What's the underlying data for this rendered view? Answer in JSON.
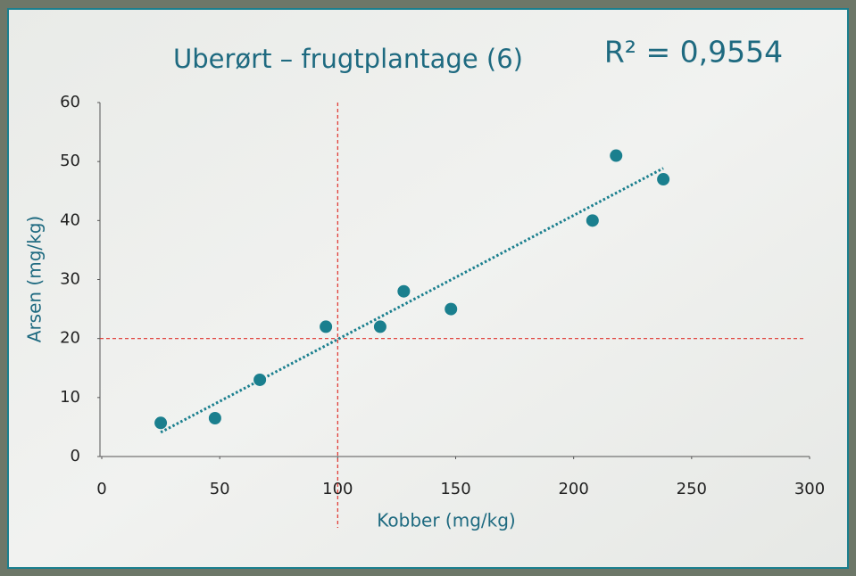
{
  "chart_data": {
    "type": "scatter",
    "title": "Uberørt – frugtplantage (6)",
    "annotation": "R² = 0,9554",
    "x_label": "Kobber (mg/kg)",
    "y_label": "Arsen (mg/kg)",
    "x": [
      25,
      48,
      67,
      95,
      118,
      128,
      148,
      208,
      218,
      238
    ],
    "values": [
      5.7,
      6.5,
      13,
      22,
      22,
      28,
      25,
      40,
      51,
      47
    ],
    "color": "#1a7f8e",
    "trendline": true,
    "reference_x": 100,
    "reference_y": 20,
    "reference_color": "#e0302a",
    "xlim": [
      0,
      300
    ],
    "xticks": [
      0,
      50,
      100,
      150,
      200,
      250,
      300
    ],
    "ylim": [
      0,
      60
    ],
    "yticks": [
      0,
      10,
      20,
      30,
      40,
      50,
      60
    ]
  }
}
